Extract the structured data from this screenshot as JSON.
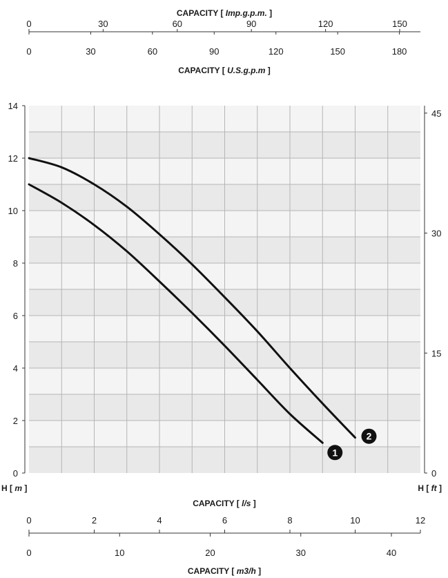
{
  "chart_data": {
    "type": "line",
    "x_unit_label": "l/s",
    "xlim": [
      0,
      12
    ],
    "ylim": [
      0,
      14
    ],
    "y_left": {
      "title_prefix": "H [",
      "unit": "m",
      "title_suffix": "]",
      "ticks": [
        0,
        2,
        4,
        6,
        8,
        10,
        12,
        14
      ]
    },
    "y_right": {
      "title_prefix": "H [",
      "unit": "ft",
      "title_suffix": "]",
      "ticks": [
        "0",
        "15",
        "30",
        "45"
      ],
      "tick_values_m": [
        0,
        4.572,
        9.144,
        13.716
      ]
    },
    "top_axes": [
      {
        "title_prefix": "CAPACITY [",
        "unit": "Imp.g.p.m.",
        "title_suffix": "]",
        "ticks": [
          "0",
          "30",
          "60",
          "90",
          "120",
          "150"
        ],
        "tick_values_ls": [
          0,
          2.273,
          4.546,
          6.819,
          9.092,
          11.365
        ]
      },
      {
        "title_prefix": "CAPACITY [",
        "unit": "U.S.g.p.m",
        "title_suffix": "]",
        "ticks": [
          "0",
          "30",
          "60",
          "90",
          "120",
          "150",
          "180"
        ],
        "tick_values_ls": [
          0,
          1.893,
          3.785,
          5.678,
          7.571,
          9.464,
          11.356
        ]
      }
    ],
    "bottom_axes": [
      {
        "title_prefix": "CAPACITY [",
        "unit": "l/s",
        "title_suffix": "]",
        "ticks": [
          "0",
          "2",
          "4",
          "6",
          "8",
          "10",
          "12"
        ],
        "tick_values_ls": [
          0,
          2,
          4,
          6,
          8,
          10,
          12
        ]
      },
      {
        "title_prefix": "CAPACITY [",
        "unit": "m3/h",
        "title_suffix": "]",
        "ticks": [
          "0",
          "10",
          "20",
          "30",
          "40"
        ],
        "tick_values_ls": [
          0,
          2.778,
          5.556,
          8.333,
          11.111
        ]
      }
    ],
    "series": [
      {
        "marker": "1",
        "x": [
          0,
          1,
          2,
          3,
          4,
          5,
          6,
          7,
          8,
          9
        ],
        "y": [
          11.0,
          10.3,
          9.45,
          8.45,
          7.3,
          6.1,
          4.85,
          3.55,
          2.25,
          1.15
        ]
      },
      {
        "marker": "2",
        "x": [
          0,
          1,
          2,
          3,
          4,
          5,
          6,
          7,
          8,
          9,
          10
        ],
        "y": [
          12.0,
          11.65,
          11.0,
          10.15,
          9.1,
          7.95,
          6.7,
          5.4,
          4.0,
          2.65,
          1.35
        ]
      }
    ],
    "grid": true
  }
}
